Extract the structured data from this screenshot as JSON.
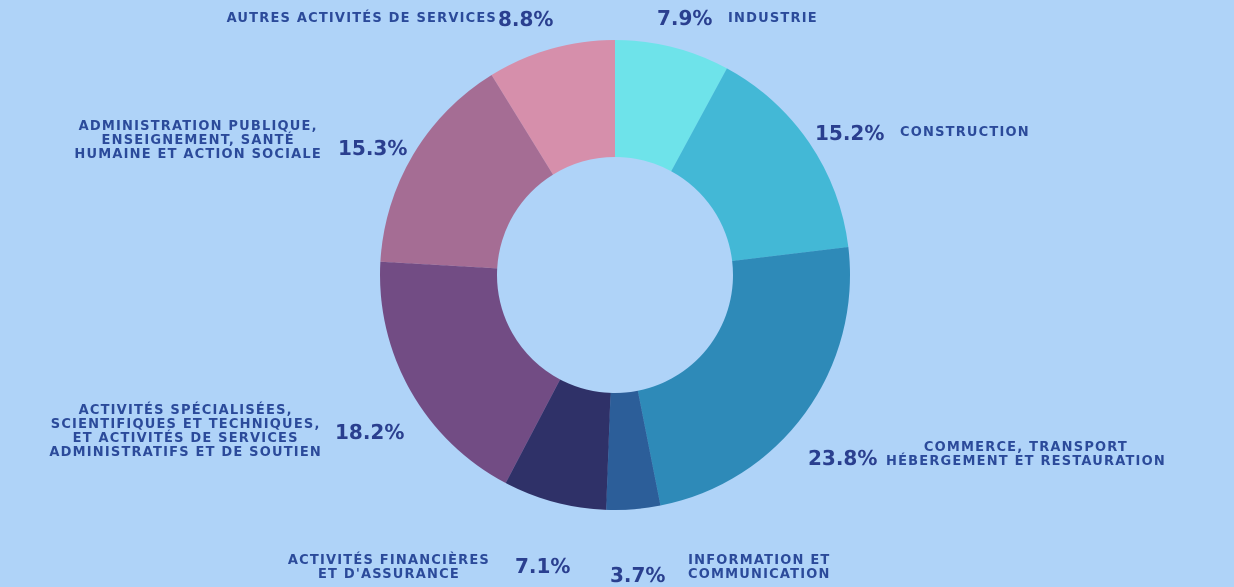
{
  "chart_data": {
    "type": "donut",
    "categories": [
      "INDUSTRIE",
      "CONSTRUCTION",
      "COMMERCE, TRANSPORT\nHÉBERGEMENT ET RESTAURATION",
      "INFORMATION ET\nCOMMUNICATION",
      "ACTIVITÉS FINANCIÈRES\nET D'ASSURANCE",
      "ACTIVITÉS SPÉCIALISÉES,\nSCIENTIFIQUES ET TECHNIQUES,\nET ACTIVITÉS DE SERVICES\nADMINISTRATIFS ET DE SOUTIEN",
      "ADMINISTRATION PUBLIQUE,\nENSEIGNEMENT, SANTÉ\nHUMAINE ET ACTION SOCIALE",
      "AUTRES ACTIVITÉS DE SERVICES"
    ],
    "values": [
      7.9,
      15.2,
      23.8,
      3.7,
      7.1,
      18.2,
      15.3,
      8.8
    ],
    "value_labels": [
      "7.9%",
      "15.2%",
      "23.8%",
      "3.7%",
      "7.1%",
      "18.2%",
      "15.3%",
      "8.8%"
    ],
    "colors": [
      "#6ee3ea",
      "#43b8d6",
      "#2e8ab8",
      "#2c5e99",
      "#2f3168",
      "#724c84",
      "#a56d94",
      "#d68fab"
    ]
  }
}
